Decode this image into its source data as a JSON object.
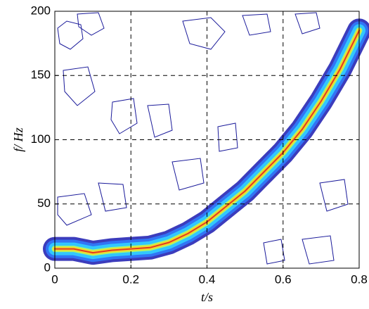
{
  "chart_data": {
    "type": "contour",
    "xlabel": "t/s",
    "ylabel": "f/ Hz",
    "x": [
      0,
      0.05,
      0.1,
      0.15,
      0.2,
      0.25,
      0.3,
      0.35,
      0.4,
      0.45,
      0.5,
      0.55,
      0.6,
      0.65,
      0.7,
      0.75,
      0.8
    ],
    "series": [
      {
        "values": [
          15,
          15,
          12,
          14,
          15,
          16,
          20,
          27,
          36,
          48,
          60,
          75,
          90,
          108,
          130,
          155,
          185
        ]
      }
    ],
    "xlim": [
      0,
      0.8
    ],
    "ylim": [
      0,
      200
    ],
    "xticks": [
      0,
      0.2,
      0.4,
      0.6,
      0.8
    ],
    "yticks": [
      0,
      50,
      100,
      150,
      200
    ],
    "grid": true
  }
}
